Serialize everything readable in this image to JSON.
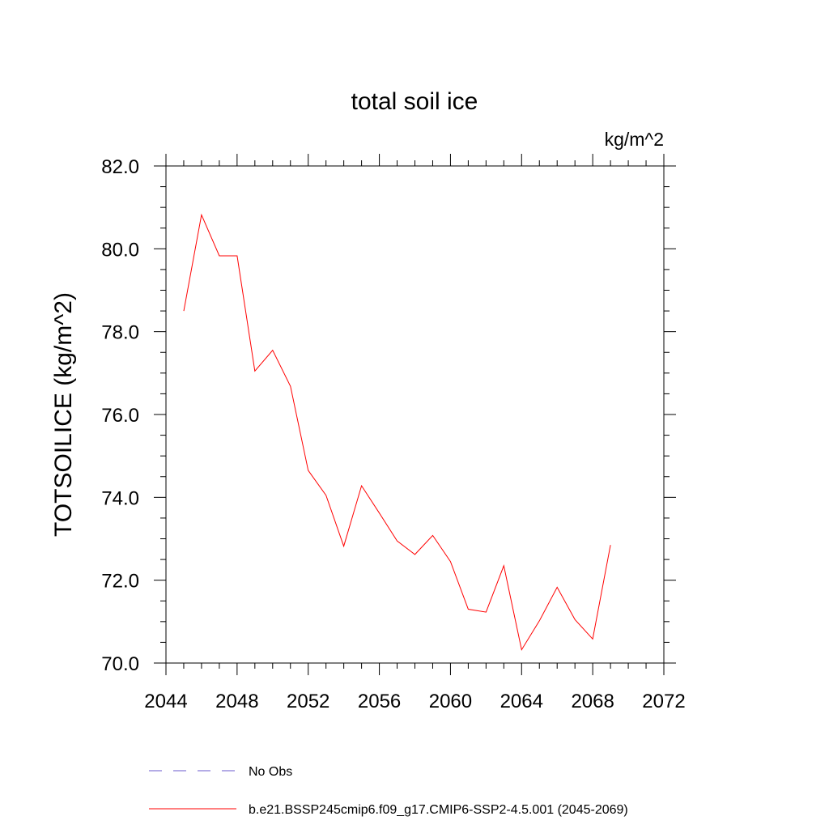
{
  "chart_data": {
    "type": "line",
    "title": "total soil ice",
    "units_label": "kg/m^2",
    "ylabel": "TOTSOILICE  (kg/m^2)",
    "xlabel": "",
    "xlim": [
      2044,
      2072
    ],
    "ylim": [
      70.0,
      82.0
    ],
    "x_ticks": [
      2044,
      2048,
      2052,
      2056,
      2060,
      2064,
      2068,
      2072
    ],
    "y_ticks": [
      "70.0",
      "72.0",
      "74.0",
      "76.0",
      "78.0",
      "80.0",
      "82.0"
    ],
    "grid": false,
    "series": [
      {
        "name": "b.e21.BSSP245cmip6.f09_g17.CMIP6-SSP2-4.5.001 (2045-2069)",
        "color": "#ff0000",
        "x": [
          2045,
          2046,
          2047,
          2048,
          2049,
          2050,
          2051,
          2052,
          2053,
          2054,
          2055,
          2056,
          2057,
          2058,
          2059,
          2060,
          2061,
          2062,
          2063,
          2064,
          2065,
          2066,
          2067,
          2068,
          2069
        ],
        "values": [
          78.5,
          80.82,
          79.83,
          79.83,
          77.05,
          77.55,
          76.68,
          74.65,
          74.05,
          72.82,
          74.28,
          73.62,
          72.95,
          72.62,
          73.08,
          72.45,
          71.3,
          71.23,
          72.35,
          70.32,
          71.02,
          71.83,
          71.05,
          70.58,
          72.85
        ]
      }
    ],
    "legend": [
      {
        "label": "No Obs",
        "color": "#6a5acd",
        "dash": "dashed"
      },
      {
        "label": "b.e21.BSSP245cmip6.f09_g17.CMIP6-SSP2-4.5.001 (2045-2069)",
        "color": "#ff0000",
        "dash": "solid"
      }
    ],
    "legend_position": "bottom"
  }
}
